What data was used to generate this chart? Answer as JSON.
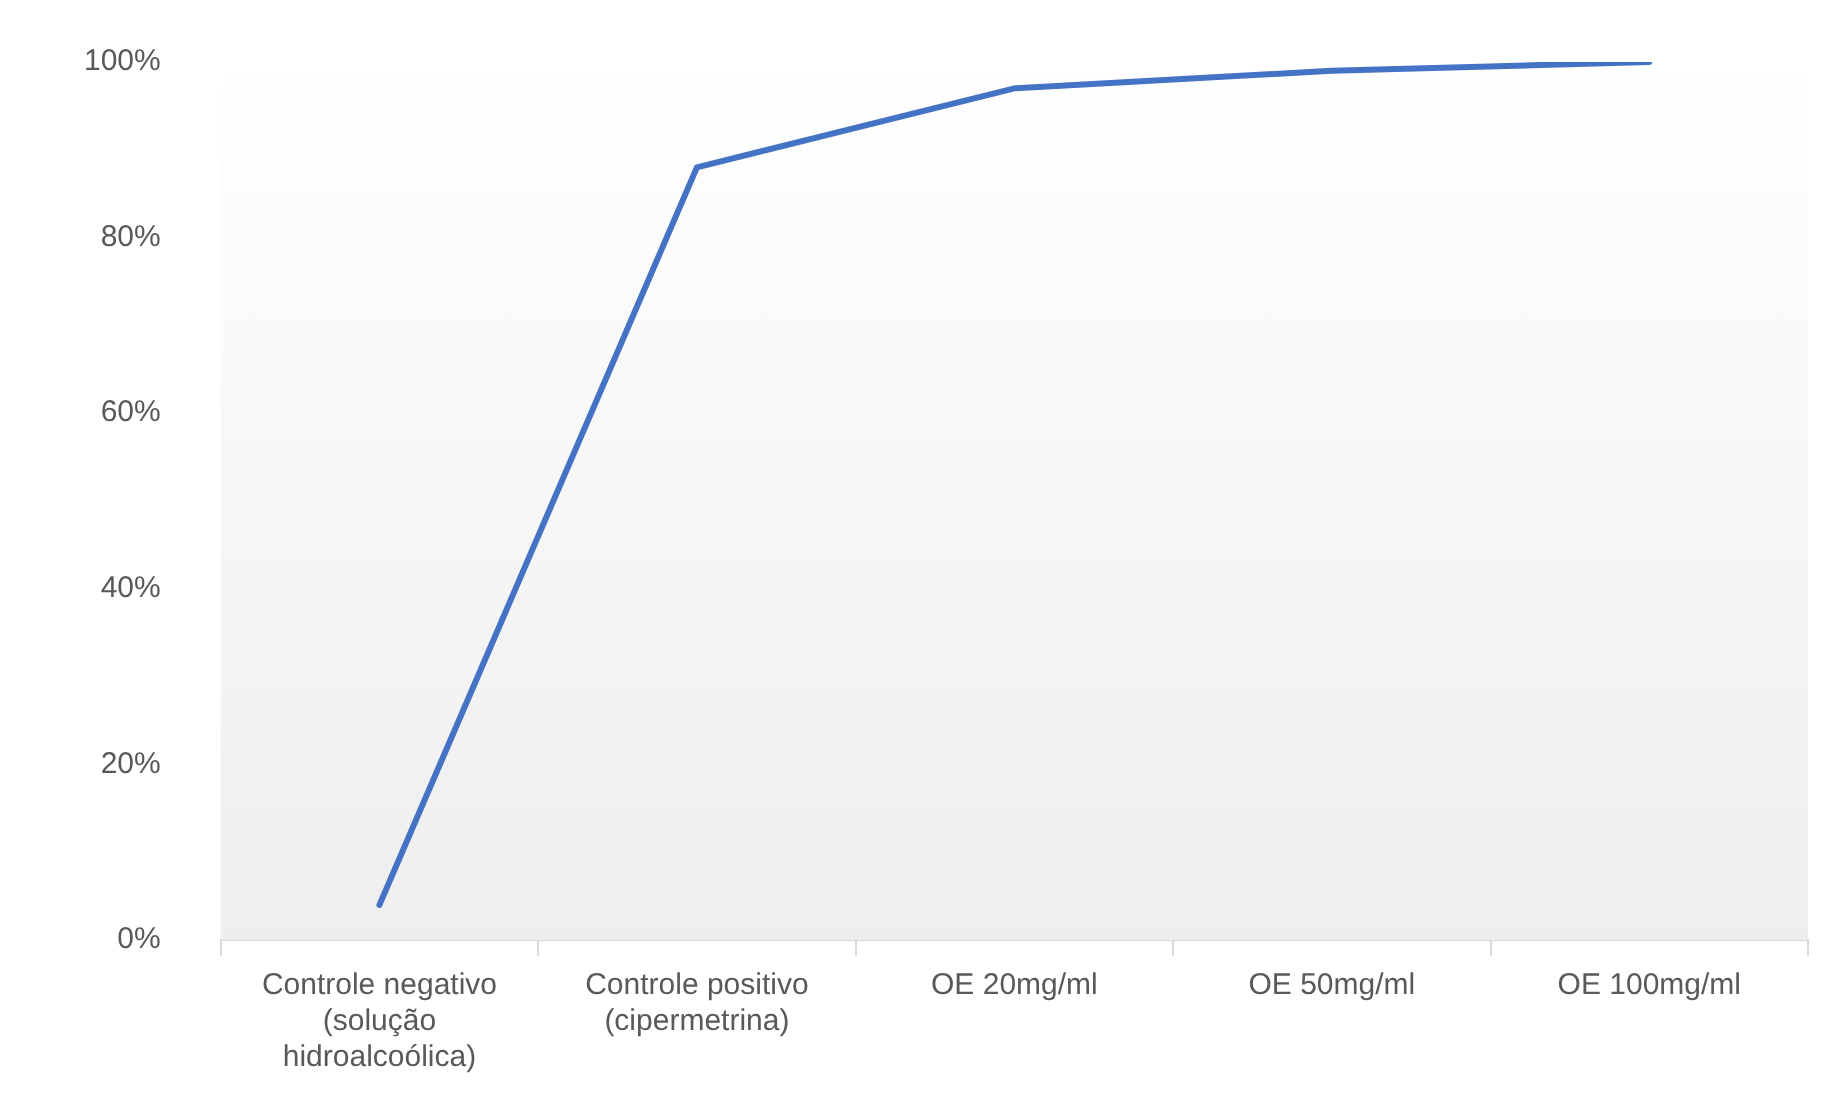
{
  "chart_data": {
    "type": "line",
    "categories": [
      "Controle negativo (solução hidroalcoólica)",
      "Controle positivo (cipermetrina)",
      "OE 20mg/ml",
      "OE 50mg/ml",
      "OE 100mg/ml"
    ],
    "series": [
      {
        "color": "#4472c4",
        "values": [
          4,
          88,
          97,
          99,
          100
        ]
      }
    ],
    "ylim": [
      0,
      100
    ],
    "yticks": [
      {
        "value": 0,
        "label": "0%"
      },
      {
        "value": 20,
        "label": "20%"
      },
      {
        "value": 40,
        "label": "40%"
      },
      {
        "value": 60,
        "label": "60%"
      },
      {
        "value": 80,
        "label": "80%"
      },
      {
        "value": 100,
        "label": "100%"
      }
    ],
    "grid": false,
    "legend": false,
    "marker": "none",
    "line_style": "solid"
  }
}
